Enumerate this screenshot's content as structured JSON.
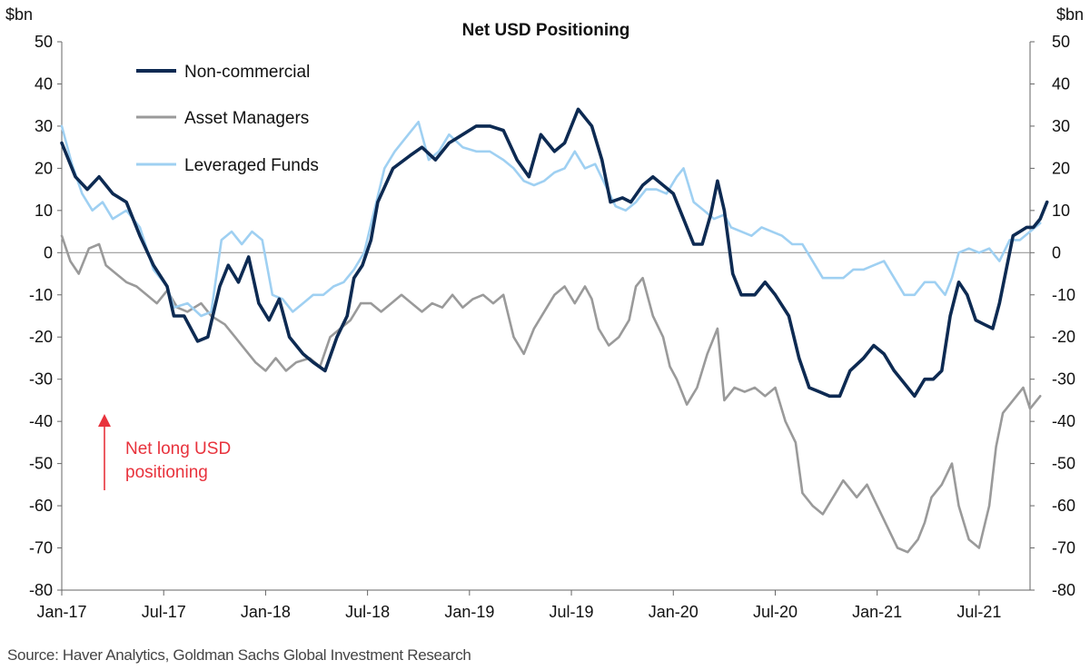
{
  "chart_data": {
    "type": "line",
    "title": "Net USD Positioning",
    "ylabel_left": "$bn",
    "ylabel_right": "$bn",
    "ylim": [
      -80,
      50
    ],
    "yticks": [
      50,
      40,
      30,
      20,
      10,
      0,
      -10,
      -20,
      -30,
      -40,
      -50,
      -60,
      -70,
      -80
    ],
    "xlim": [
      0,
      57
    ],
    "xticks": [
      {
        "label": "Jan-17",
        "pos": 0
      },
      {
        "label": "Jul-17",
        "pos": 6
      },
      {
        "label": "Jan-18",
        "pos": 12
      },
      {
        "label": "Jul-18",
        "pos": 18
      },
      {
        "label": "Jan-19",
        "pos": 24
      },
      {
        "label": "Jul-19",
        "pos": 30
      },
      {
        "label": "Jan-20",
        "pos": 36
      },
      {
        "label": "Jul-20",
        "pos": 42
      },
      {
        "label": "Jan-21",
        "pos": 48
      },
      {
        "label": "Jul-21",
        "pos": 54
      }
    ],
    "grid": false,
    "zero_line": true,
    "legend_position": "top-left",
    "series": [
      {
        "name": "Non-commercial",
        "color": "#0d2a52",
        "points": [
          [
            0,
            26
          ],
          [
            0.8,
            18
          ],
          [
            1.5,
            15
          ],
          [
            2.2,
            18
          ],
          [
            3,
            14
          ],
          [
            3.8,
            12
          ],
          [
            4.6,
            4
          ],
          [
            5.4,
            -3
          ],
          [
            6.2,
            -8
          ],
          [
            6.6,
            -15
          ],
          [
            7.2,
            -15
          ],
          [
            8,
            -21
          ],
          [
            8.6,
            -20
          ],
          [
            9.3,
            -8
          ],
          [
            9.8,
            -3
          ],
          [
            10.4,
            -7
          ],
          [
            11,
            -1
          ],
          [
            11.6,
            -12
          ],
          [
            12.2,
            -16
          ],
          [
            12.8,
            -11
          ],
          [
            13.4,
            -20
          ],
          [
            14.2,
            -24
          ],
          [
            14.8,
            -26
          ],
          [
            15.5,
            -28
          ],
          [
            16.2,
            -20
          ],
          [
            16.8,
            -15
          ],
          [
            17.2,
            -6
          ],
          [
            17.7,
            -3
          ],
          [
            18.2,
            3
          ],
          [
            18.6,
            12
          ],
          [
            19.5,
            20
          ],
          [
            20.5,
            23
          ],
          [
            21.2,
            25
          ],
          [
            22,
            22
          ],
          [
            22.8,
            26
          ],
          [
            23.6,
            28
          ],
          [
            24.4,
            30
          ],
          [
            25.2,
            30
          ],
          [
            26,
            29
          ],
          [
            26.8,
            22
          ],
          [
            27.5,
            18
          ],
          [
            28.2,
            28
          ],
          [
            29,
            24
          ],
          [
            29.6,
            26
          ],
          [
            30.4,
            34
          ],
          [
            31.2,
            30
          ],
          [
            31.8,
            22
          ],
          [
            32.3,
            12
          ],
          [
            33,
            13
          ],
          [
            33.5,
            12
          ],
          [
            34.2,
            16
          ],
          [
            34.8,
            18
          ],
          [
            35.4,
            16
          ],
          [
            36,
            14
          ],
          [
            36.6,
            8
          ],
          [
            37.2,
            2
          ],
          [
            37.7,
            2
          ],
          [
            38.2,
            9
          ],
          [
            38.6,
            17
          ],
          [
            39,
            10
          ],
          [
            39.5,
            -5
          ],
          [
            40,
            -10
          ],
          [
            40.8,
            -10
          ],
          [
            41.4,
            -7
          ],
          [
            42,
            -10
          ],
          [
            42.8,
            -15
          ],
          [
            43.4,
            -25
          ],
          [
            44,
            -32
          ],
          [
            44.6,
            -33
          ],
          [
            45.2,
            -34
          ],
          [
            45.8,
            -34
          ],
          [
            46.4,
            -28
          ],
          [
            47.2,
            -25
          ],
          [
            47.8,
            -22
          ],
          [
            48.4,
            -24
          ],
          [
            49,
            -28
          ],
          [
            49.6,
            -31
          ],
          [
            50.2,
            -34
          ],
          [
            50.8,
            -30
          ],
          [
            51.3,
            -30
          ],
          [
            51.8,
            -28
          ],
          [
            52.3,
            -15
          ],
          [
            52.8,
            -7
          ],
          [
            53.3,
            -10
          ],
          [
            53.8,
            -16
          ],
          [
            54.3,
            -17
          ],
          [
            54.8,
            -18
          ],
          [
            55.2,
            -12
          ],
          [
            55.6,
            -4
          ],
          [
            56,
            4
          ],
          [
            56.4,
            5
          ],
          [
            56.8,
            6
          ],
          [
            57.2,
            6
          ],
          [
            57.6,
            8
          ],
          [
            58,
            12
          ]
        ]
      },
      {
        "name": "Asset Managers",
        "color": "#9a9a9a",
        "points": [
          [
            0,
            4
          ],
          [
            0.5,
            -2
          ],
          [
            1,
            -5
          ],
          [
            1.6,
            1
          ],
          [
            2.2,
            2
          ],
          [
            2.6,
            -3
          ],
          [
            3.2,
            -5
          ],
          [
            3.8,
            -7
          ],
          [
            4.4,
            -8
          ],
          [
            5,
            -10
          ],
          [
            5.6,
            -12
          ],
          [
            6.2,
            -9
          ],
          [
            6.8,
            -13
          ],
          [
            7.4,
            -14
          ],
          [
            8.2,
            -12
          ],
          [
            8.8,
            -15
          ],
          [
            9.6,
            -17
          ],
          [
            10.2,
            -20
          ],
          [
            10.8,
            -23
          ],
          [
            11.4,
            -26
          ],
          [
            12,
            -28
          ],
          [
            12.6,
            -25
          ],
          [
            13.2,
            -28
          ],
          [
            13.8,
            -26
          ],
          [
            14.6,
            -25
          ],
          [
            15.2,
            -27
          ],
          [
            15.8,
            -20
          ],
          [
            16.4,
            -18
          ],
          [
            17,
            -16
          ],
          [
            17.6,
            -12
          ],
          [
            18.2,
            -12
          ],
          [
            18.8,
            -14
          ],
          [
            19.4,
            -12
          ],
          [
            20,
            -10
          ],
          [
            20.6,
            -12
          ],
          [
            21.2,
            -14
          ],
          [
            21.8,
            -12
          ],
          [
            22.4,
            -13
          ],
          [
            23,
            -10
          ],
          [
            23.6,
            -13
          ],
          [
            24.2,
            -11
          ],
          [
            24.8,
            -10
          ],
          [
            25.4,
            -12
          ],
          [
            26,
            -10
          ],
          [
            26.6,
            -20
          ],
          [
            27.2,
            -24
          ],
          [
            27.8,
            -18
          ],
          [
            28.4,
            -14
          ],
          [
            29,
            -10
          ],
          [
            29.6,
            -8
          ],
          [
            30.2,
            -12
          ],
          [
            30.8,
            -8
          ],
          [
            31.2,
            -11
          ],
          [
            31.6,
            -18
          ],
          [
            32.2,
            -22
          ],
          [
            32.8,
            -20
          ],
          [
            33.4,
            -16
          ],
          [
            33.8,
            -8
          ],
          [
            34.2,
            -6
          ],
          [
            34.8,
            -15
          ],
          [
            35.4,
            -20
          ],
          [
            35.8,
            -27
          ],
          [
            36.2,
            -30
          ],
          [
            36.8,
            -36
          ],
          [
            37.4,
            -32
          ],
          [
            38,
            -24
          ],
          [
            38.6,
            -18
          ],
          [
            39,
            -35
          ],
          [
            39.6,
            -32
          ],
          [
            40.2,
            -33
          ],
          [
            40.8,
            -32
          ],
          [
            41.4,
            -34
          ],
          [
            42,
            -32
          ],
          [
            42.6,
            -40
          ],
          [
            43.2,
            -45
          ],
          [
            43.6,
            -57
          ],
          [
            44.2,
            -60
          ],
          [
            44.8,
            -62
          ],
          [
            45.4,
            -58
          ],
          [
            46,
            -54
          ],
          [
            46.4,
            -56
          ],
          [
            46.8,
            -58
          ],
          [
            47.4,
            -55
          ],
          [
            48,
            -60
          ],
          [
            48.6,
            -65
          ],
          [
            49.2,
            -70
          ],
          [
            49.8,
            -71
          ],
          [
            50.4,
            -68
          ],
          [
            50.8,
            -64
          ],
          [
            51.2,
            -58
          ],
          [
            51.8,
            -55
          ],
          [
            52.4,
            -50
          ],
          [
            52.8,
            -60
          ],
          [
            53.4,
            -68
          ],
          [
            54,
            -70
          ],
          [
            54.6,
            -60
          ],
          [
            55,
            -46
          ],
          [
            55.4,
            -38
          ],
          [
            56,
            -35
          ],
          [
            56.6,
            -32
          ],
          [
            57,
            -37
          ],
          [
            57.6,
            -34
          ]
        ]
      },
      {
        "name": "Leveraged Funds",
        "color": "#9fd0f2",
        "points": [
          [
            0,
            30
          ],
          [
            0.6,
            21
          ],
          [
            1.2,
            14
          ],
          [
            1.8,
            10
          ],
          [
            2.4,
            12
          ],
          [
            3,
            8
          ],
          [
            3.8,
            10
          ],
          [
            4.6,
            6
          ],
          [
            5.4,
            -4
          ],
          [
            6.2,
            -8
          ],
          [
            6.6,
            -13
          ],
          [
            7.4,
            -12
          ],
          [
            8.2,
            -15
          ],
          [
            8.8,
            -14
          ],
          [
            9.4,
            3
          ],
          [
            10,
            5
          ],
          [
            10.6,
            2
          ],
          [
            11.2,
            5
          ],
          [
            11.8,
            3
          ],
          [
            12.4,
            -10
          ],
          [
            13,
            -11
          ],
          [
            13.6,
            -14
          ],
          [
            14.2,
            -12
          ],
          [
            14.8,
            -10
          ],
          [
            15.4,
            -10
          ],
          [
            16,
            -8
          ],
          [
            16.6,
            -7
          ],
          [
            17.2,
            -4
          ],
          [
            17.8,
            0
          ],
          [
            18.4,
            10
          ],
          [
            19,
            20
          ],
          [
            19.6,
            24
          ],
          [
            20.4,
            28
          ],
          [
            21,
            31
          ],
          [
            21.6,
            22
          ],
          [
            22.2,
            24
          ],
          [
            22.8,
            28
          ],
          [
            23.6,
            25
          ],
          [
            24.4,
            24
          ],
          [
            25.2,
            24
          ],
          [
            26,
            22
          ],
          [
            26.6,
            20
          ],
          [
            27.2,
            17
          ],
          [
            27.8,
            16
          ],
          [
            28.4,
            17
          ],
          [
            29,
            19
          ],
          [
            29.6,
            20
          ],
          [
            30.2,
            24
          ],
          [
            30.8,
            20
          ],
          [
            31.4,
            21
          ],
          [
            32,
            16
          ],
          [
            32.6,
            11
          ],
          [
            33.2,
            10
          ],
          [
            33.8,
            12
          ],
          [
            34.4,
            15
          ],
          [
            35,
            15
          ],
          [
            35.6,
            14
          ],
          [
            36.2,
            18
          ],
          [
            36.6,
            20
          ],
          [
            37.2,
            12
          ],
          [
            37.8,
            10
          ],
          [
            38.4,
            8
          ],
          [
            39,
            9
          ],
          [
            39.4,
            6
          ],
          [
            40,
            5
          ],
          [
            40.6,
            4
          ],
          [
            41.2,
            6
          ],
          [
            41.8,
            5
          ],
          [
            42.4,
            4
          ],
          [
            43,
            2
          ],
          [
            43.6,
            2
          ],
          [
            44.2,
            -2
          ],
          [
            44.8,
            -6
          ],
          [
            45.4,
            -6
          ],
          [
            46,
            -6
          ],
          [
            46.6,
            -4
          ],
          [
            47.2,
            -4
          ],
          [
            47.8,
            -3
          ],
          [
            48.4,
            -2
          ],
          [
            49,
            -6
          ],
          [
            49.6,
            -10
          ],
          [
            50.2,
            -10
          ],
          [
            50.8,
            -7
          ],
          [
            51.4,
            -7
          ],
          [
            52,
            -10
          ],
          [
            52.4,
            -6
          ],
          [
            52.8,
            0
          ],
          [
            53.4,
            1
          ],
          [
            54,
            0
          ],
          [
            54.6,
            1
          ],
          [
            55.2,
            -2
          ],
          [
            55.8,
            3
          ],
          [
            56.4,
            3
          ],
          [
            57,
            5
          ],
          [
            57.6,
            7
          ]
        ]
      }
    ],
    "annotation": {
      "text_line1": "Net long USD",
      "text_line2": "positioning",
      "color": "#e8323c"
    }
  },
  "footer": {
    "source": "Source: Haver Analytics, Goldman Sachs Global Investment Research"
  }
}
